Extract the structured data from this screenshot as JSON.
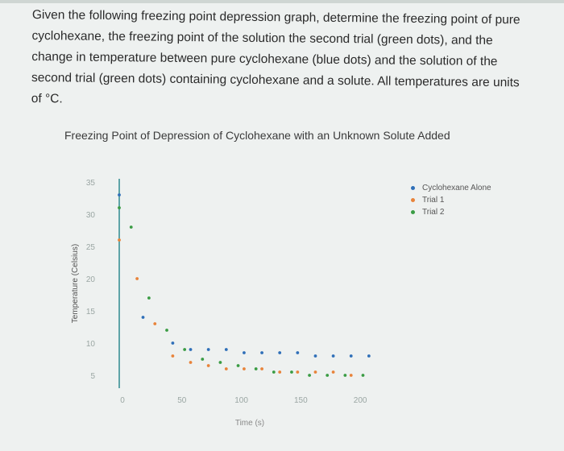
{
  "question": "Given the following freezing point depression graph, determine the freezing point of pure cyclohexane, the freezing point of the solution the second trial (green dots), and the change in temperature between pure cyclohexane (blue dots) and the solution of the second trial (green dots) containing cyclohexane and a solute. All temperatures are units of °C.",
  "colors": {
    "background": "#eef1f0",
    "axis": "#2f8a8f",
    "tick": "#9aa6a3",
    "series": [
      "#2f6fb8",
      "#e8833a",
      "#3a9c44"
    ]
  },
  "chart_data": {
    "type": "scatter",
    "title": "Freezing Point of Depression of Cyclohexane with an Unknown Solute Added",
    "xlabel": "Time (s)",
    "ylabel": "Temperature (Celsius)",
    "xlim": [
      0,
      225
    ],
    "ylim": [
      5,
      35
    ],
    "xticks": [
      0,
      50,
      100,
      150,
      200
    ],
    "yticks": [
      5,
      10,
      15,
      20,
      25,
      30,
      35
    ],
    "grid": false,
    "legend": "right",
    "series": [
      {
        "name": "Cyclohexane Alone",
        "points": [
          [
            0,
            33
          ],
          [
            20,
            14
          ],
          [
            45,
            10
          ],
          [
            60,
            9
          ],
          [
            75,
            9
          ],
          [
            90,
            9
          ],
          [
            105,
            8.5
          ],
          [
            120,
            8.5
          ],
          [
            135,
            8.5
          ],
          [
            150,
            8.5
          ],
          [
            165,
            8
          ],
          [
            180,
            8
          ],
          [
            195,
            8
          ],
          [
            210,
            8
          ]
        ]
      },
      {
        "name": "Trial 1",
        "points": [
          [
            0,
            26
          ],
          [
            15,
            20
          ],
          [
            30,
            13
          ],
          [
            45,
            8
          ],
          [
            60,
            7
          ],
          [
            75,
            6.5
          ],
          [
            90,
            6
          ],
          [
            105,
            6
          ],
          [
            120,
            6
          ],
          [
            135,
            5.5
          ],
          [
            150,
            5.5
          ],
          [
            165,
            5.5
          ],
          [
            180,
            5.5
          ],
          [
            195,
            5
          ]
        ]
      },
      {
        "name": "Trial 2",
        "points": [
          [
            0,
            31
          ],
          [
            10,
            28
          ],
          [
            25,
            17
          ],
          [
            40,
            12
          ],
          [
            55,
            9
          ],
          [
            70,
            7.5
          ],
          [
            85,
            7
          ],
          [
            100,
            6.5
          ],
          [
            115,
            6
          ],
          [
            130,
            5.5
          ],
          [
            145,
            5.5
          ],
          [
            160,
            5
          ],
          [
            175,
            5
          ],
          [
            190,
            5
          ],
          [
            205,
            5
          ]
        ]
      }
    ]
  }
}
